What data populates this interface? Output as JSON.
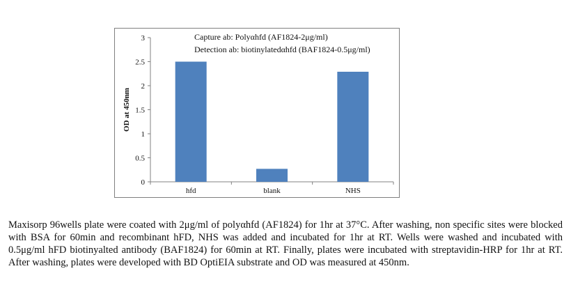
{
  "chart_data": {
    "type": "bar",
    "categories": [
      "hfd",
      "blank",
      "NHS"
    ],
    "values": [
      2.5,
      0.27,
      2.29
    ],
    "ylabel": "OD at 450nm",
    "xlabel": "",
    "ylim": [
      0,
      3
    ],
    "yticks": [
      "0",
      "0.5",
      "1",
      "1.5",
      "2",
      "2.5",
      "3"
    ],
    "bar_color": "#4f81bd",
    "grid": false,
    "annotations": [
      "Capture ab: Polyαhfd (AF1824-2μg/ml)",
      "Detection ab: biotinylatedαhfd (BAF1824-0.5μg/ml)"
    ]
  },
  "caption": "Maxisorp 96wells plate were coated with 2μg/ml of polyαhfd (AF1824) for 1hr at 37°C. After washing, non specific sites were blocked with BSA for 60min and recombinant hFD, NHS was added and incubated for 1hr at RT.  Wells were washed and incubated with 0.5μg/ml hFD biotinyalted antibody (BAF1824) for 60min at RT. Finally, plates were incubated with streptavidin-HRP for 1hr at RT. After washing, plates were developed with BD OptiEIA substrate and  OD was measured at 450nm."
}
